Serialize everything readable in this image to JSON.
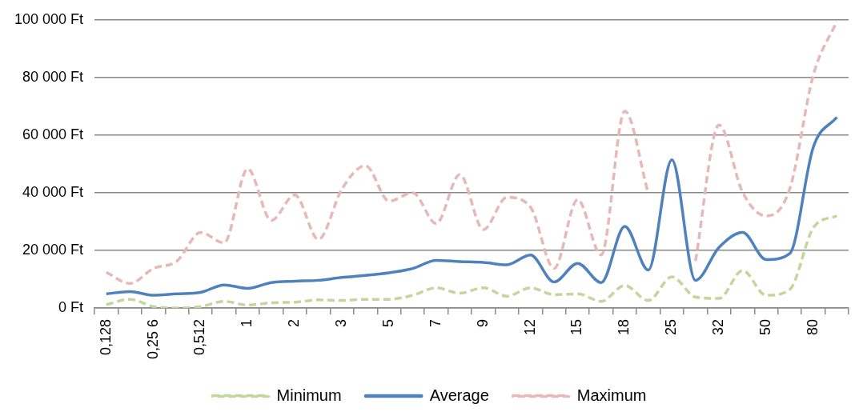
{
  "chart_data": {
    "type": "line",
    "categories": [
      "0,128",
      null,
      "0,25 6",
      null,
      "0,512",
      null,
      "1",
      null,
      "2",
      null,
      "3",
      null,
      "5",
      null,
      "7",
      null,
      "9",
      null,
      "12",
      null,
      "15",
      null,
      "18",
      null,
      "25",
      null,
      "32",
      null,
      "50",
      null,
      "80",
      null
    ],
    "series": [
      {
        "name": "Minimum",
        "color": "#c3d69b",
        "line_style": "dashed",
        "values": [
          1200,
          3000,
          500,
          0,
          500,
          2300,
          1000,
          1800,
          2000,
          2800,
          2600,
          3000,
          3000,
          4400,
          7000,
          5100,
          7000,
          4100,
          7000,
          4600,
          4900,
          2300,
          7800,
          2600,
          10800,
          3800,
          3300,
          13000,
          4400,
          6400,
          27800,
          32000
        ]
      },
      {
        "name": "Average",
        "color": "#4f81bd",
        "line_style": "solid",
        "values": [
          4900,
          5700,
          4400,
          4900,
          5400,
          8000,
          6800,
          8800,
          9300,
          9600,
          10600,
          11300,
          12200,
          13700,
          16500,
          16100,
          15800,
          15000,
          18400,
          9000,
          15500,
          8800,
          28300,
          13200,
          51400,
          9600,
          21000,
          26200,
          16800,
          18900,
          55800,
          66200
        ]
      },
      {
        "name": "Maximum",
        "color": "#e6b9b8",
        "line_style": "dashed",
        "values": [
          12400,
          8500,
          13700,
          16300,
          26200,
          22600,
          48300,
          30400,
          39200,
          23800,
          41300,
          49400,
          37100,
          40000,
          29300,
          46300,
          27200,
          38400,
          35000,
          13700,
          37600,
          18400,
          68300,
          39700,
          null,
          16300,
          63500,
          40200,
          31900,
          41300,
          80800,
          99500
        ]
      }
    ],
    "ylim": [
      0,
      100000
    ],
    "yticks": [
      {
        "value": 0,
        "label": "0 Ft"
      },
      {
        "value": 20000,
        "label": "20 000 Ft"
      },
      {
        "value": 40000,
        "label": "40 000 Ft"
      },
      {
        "value": 60000,
        "label": "60 000 Ft"
      },
      {
        "value": 80000,
        "label": "80 000 Ft"
      },
      {
        "value": 100000,
        "label": "100 000 Ft"
      }
    ],
    "grid": "y",
    "legend": "bottom",
    "marker": "none"
  }
}
